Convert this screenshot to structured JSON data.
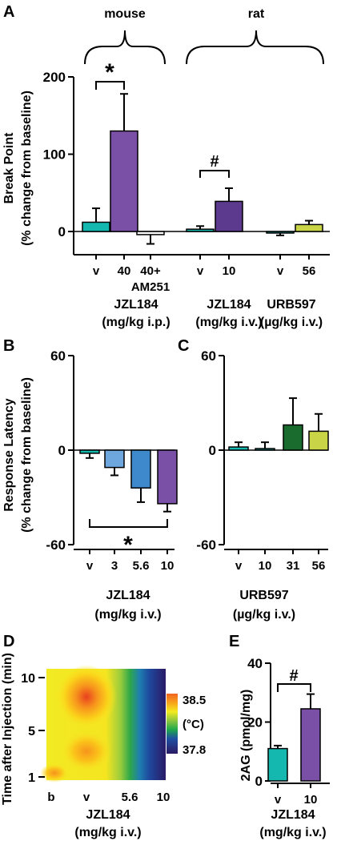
{
  "figure": {
    "panels": {
      "A": "A",
      "B": "B",
      "C": "C",
      "D": "D",
      "E": "E"
    },
    "species": {
      "mouse": "mouse",
      "rat": "rat"
    }
  },
  "colors": {
    "teal": "#15b8ae",
    "purple": "#7a4fa6",
    "dark_purple": "#5c3b8e",
    "blue": "#3e88cc",
    "light_blue": "#6ea7dd",
    "dark_green": "#1a6b2e",
    "lime": "#c9d447"
  },
  "chart_data": [
    {
      "id": "A",
      "type": "bar",
      "ylabel_1": "Break Point",
      "ylabel_2": "(% change from baseline)",
      "ylim": [
        -30,
        200
      ],
      "yticks": [
        "0",
        "100",
        "200"
      ],
      "categories": [
        "v",
        "40",
        "40+",
        "v",
        "10",
        "v",
        "56"
      ],
      "category_extra": [
        "",
        "",
        "AM251",
        "",
        "",
        "",
        ""
      ],
      "values": [
        12,
        130,
        -4,
        3,
        39,
        -2,
        9
      ],
      "errors": [
        18,
        48,
        12,
        4,
        17,
        3,
        5
      ],
      "bar_colors": [
        "#15b8ae",
        "#7a4fa6",
        "#ffffff",
        "#15b8ae",
        "#5c3b8e",
        "#15b8ae",
        "#c9d447"
      ],
      "groups": [
        {
          "title": "JZL184",
          "unit": "(mg/kg i.p.)"
        },
        {
          "title": "JZL184",
          "unit": "(mg/kg i.v.)"
        },
        {
          "title": "URB597",
          "unit": "(µg/kg i.v.)"
        }
      ],
      "annotations": [
        "*",
        "#"
      ]
    },
    {
      "id": "B",
      "type": "bar",
      "ylabel_1": "Response Latency",
      "ylabel_2": "(% change from baseline)",
      "ylim": [
        -60,
        60
      ],
      "yticks": [
        "60",
        "0",
        "-60"
      ],
      "categories": [
        "v",
        "3",
        "5.6",
        "10"
      ],
      "values": [
        -2,
        -11,
        -24,
        -34
      ],
      "errors": [
        3,
        5,
        9,
        5
      ],
      "bar_colors": [
        "#15b8ae",
        "#6ea7dd",
        "#3e88cc",
        "#7a4fa6"
      ],
      "xlabel": "JZL184",
      "xunit": "(mg/kg i.v.)",
      "annotation": "*"
    },
    {
      "id": "C",
      "type": "bar",
      "ylim": [
        -60,
        60
      ],
      "yticks": [
        "60",
        "0",
        "-60"
      ],
      "categories": [
        "v",
        "10",
        "31",
        "56"
      ],
      "values": [
        2,
        1,
        16,
        12
      ],
      "errors": [
        3,
        4,
        17,
        11
      ],
      "bar_colors": [
        "#15b8ae",
        "#15b8ae",
        "#1a6b2e",
        "#c9d447"
      ],
      "xlabel": "URB597",
      "xunit": "(µg/kg i.v.)"
    },
    {
      "id": "D",
      "type": "heatmap",
      "ylabel": "Time after Injection (min)",
      "yticks": [
        "10",
        "5",
        "1"
      ],
      "xticks": [
        "b",
        "v",
        "5.6",
        "10"
      ],
      "xlabel": "JZL184",
      "xunit": "(mg/kg i.v.)",
      "colorbar": {
        "max": "38.5",
        "unit": "(°C)",
        "min": "37.8"
      }
    },
    {
      "id": "E",
      "type": "bar",
      "ylabel": "2AG (pmol/mg)",
      "ylim": [
        0,
        40
      ],
      "yticks": [
        "40",
        "20",
        "0"
      ],
      "categories": [
        "v",
        "10"
      ],
      "values": [
        11,
        24.5
      ],
      "errors": [
        1,
        5
      ],
      "bar_colors": [
        "#15b8ae",
        "#7a4fa6"
      ],
      "xlabel": "JZL184",
      "xunit": "(mg/kg i.v.)",
      "annotation": "#"
    }
  ]
}
